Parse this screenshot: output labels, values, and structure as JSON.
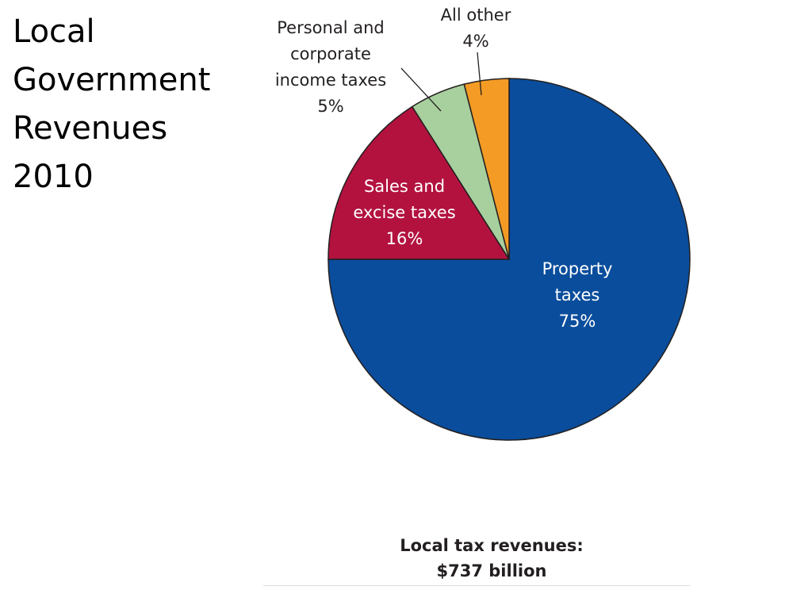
{
  "slide": {
    "title_lines": [
      "Local",
      "Government",
      "Revenues",
      "2010"
    ]
  },
  "chart_data": {
    "type": "pie",
    "unit": "%",
    "slices": [
      {
        "label_lines": [
          "Property",
          "taxes"
        ],
        "value": 75,
        "value_text": "75%",
        "color": "#0a4d9c"
      },
      {
        "label_lines": [
          "Sales and",
          "excise taxes"
        ],
        "value": 16,
        "value_text": "16%",
        "color": "#b3123f"
      },
      {
        "label_lines": [
          "Personal and",
          "corporate",
          "income taxes"
        ],
        "value": 5,
        "value_text": "5%",
        "color": "#a8cf9e"
      },
      {
        "label_lines": [
          "All other"
        ],
        "value": 4,
        "value_text": "4%",
        "color": "#f39b24"
      }
    ],
    "caption_lines": [
      "Local tax revenues:",
      "$737 billion"
    ]
  }
}
